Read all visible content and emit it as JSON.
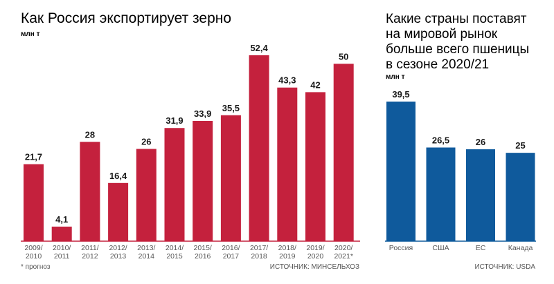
{
  "left": {
    "title": "Как Россия экспортирует зерно",
    "unit": "млн т",
    "footnote": "* прогноз",
    "source": "ИСТОЧНИК: МИНСЕЛЬХОЗ",
    "color": "#c4213d"
  },
  "right": {
    "title_lines": [
      "Какие страны поставят",
      "на мировой рынок",
      "больше всего пшеницы",
      "в сезоне 2020/21"
    ],
    "unit": "млн т",
    "source": "ИСТОЧНИК: USDA",
    "color": "#0f5a9c"
  },
  "chart_data": [
    {
      "type": "bar",
      "title": "Как Россия экспортирует зерно",
      "ylabel": "млн т",
      "categories": [
        [
          "2009/",
          "2010"
        ],
        [
          "2010/",
          "2011"
        ],
        [
          "2011/",
          "2012"
        ],
        [
          "2012/",
          "2013"
        ],
        [
          "2013/",
          "2014"
        ],
        [
          "2014/",
          "2015"
        ],
        [
          "2015/",
          "2016"
        ],
        [
          "2016/",
          "2017"
        ],
        [
          "2017/",
          "2018"
        ],
        [
          "2018/",
          "2019"
        ],
        [
          "2019/",
          "2020"
        ],
        [
          "2020/",
          "2021*"
        ]
      ],
      "values": [
        21.7,
        4.1,
        28,
        16.4,
        26,
        31.9,
        33.9,
        35.5,
        52.4,
        43.3,
        42,
        50
      ],
      "value_labels": [
        "21,7",
        "4,1",
        "28",
        "16,4",
        "26",
        "31,9",
        "33,9",
        "35,5",
        "52,4",
        "43,3",
        "42",
        "50"
      ],
      "ylim": [
        0,
        52.4
      ],
      "grid": false,
      "color": "#c4213d"
    },
    {
      "type": "bar",
      "title": "Какие страны поставят на мировой рынок больше всего пшеницы в сезоне 2020/21",
      "ylabel": "млн т",
      "categories": [
        [
          "Россия"
        ],
        [
          "США"
        ],
        [
          "ЕС"
        ],
        [
          "Канада"
        ]
      ],
      "values": [
        39.5,
        26.5,
        26,
        25
      ],
      "value_labels": [
        "39,5",
        "26,5",
        "26",
        "25"
      ],
      "ylim": [
        0,
        39.5
      ],
      "grid": false,
      "color": "#0f5a9c"
    }
  ]
}
